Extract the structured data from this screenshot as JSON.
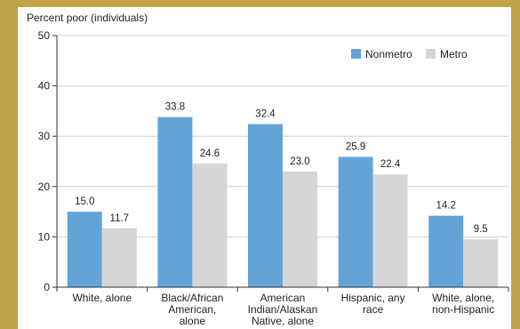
{
  "colors": {
    "frame": "#bfa24a",
    "nonmetro": "#62a4d8",
    "metro": "#d6d6d6",
    "grid": "#d0d0d0",
    "axis": "#333333"
  },
  "chart_data": {
    "type": "bar",
    "ylabel": "Percent poor (individuals)",
    "ylim": [
      0,
      50
    ],
    "yticks": [
      0,
      10,
      20,
      30,
      40,
      50
    ],
    "grid": true,
    "legend_position": "top-right",
    "categories": [
      [
        "White, alone"
      ],
      [
        "Black/African",
        "American,",
        "alone"
      ],
      [
        "American",
        "Indian/Alaskan",
        "Native, alone"
      ],
      [
        "Hispanic, any",
        "race"
      ],
      [
        "White, alone,",
        "non-Hispanic"
      ]
    ],
    "series": [
      {
        "name": "Nonmetro",
        "values": [
          15.0,
          33.8,
          32.4,
          25.9,
          14.2
        ],
        "labels": [
          "15.0",
          "33.8",
          "32.4",
          "25.9",
          "14.2"
        ]
      },
      {
        "name": "Metro",
        "values": [
          11.7,
          24.6,
          23.0,
          22.4,
          9.5
        ],
        "labels": [
          "11.7",
          "24.6",
          "23.0",
          "22.4",
          "9.5"
        ]
      }
    ]
  }
}
